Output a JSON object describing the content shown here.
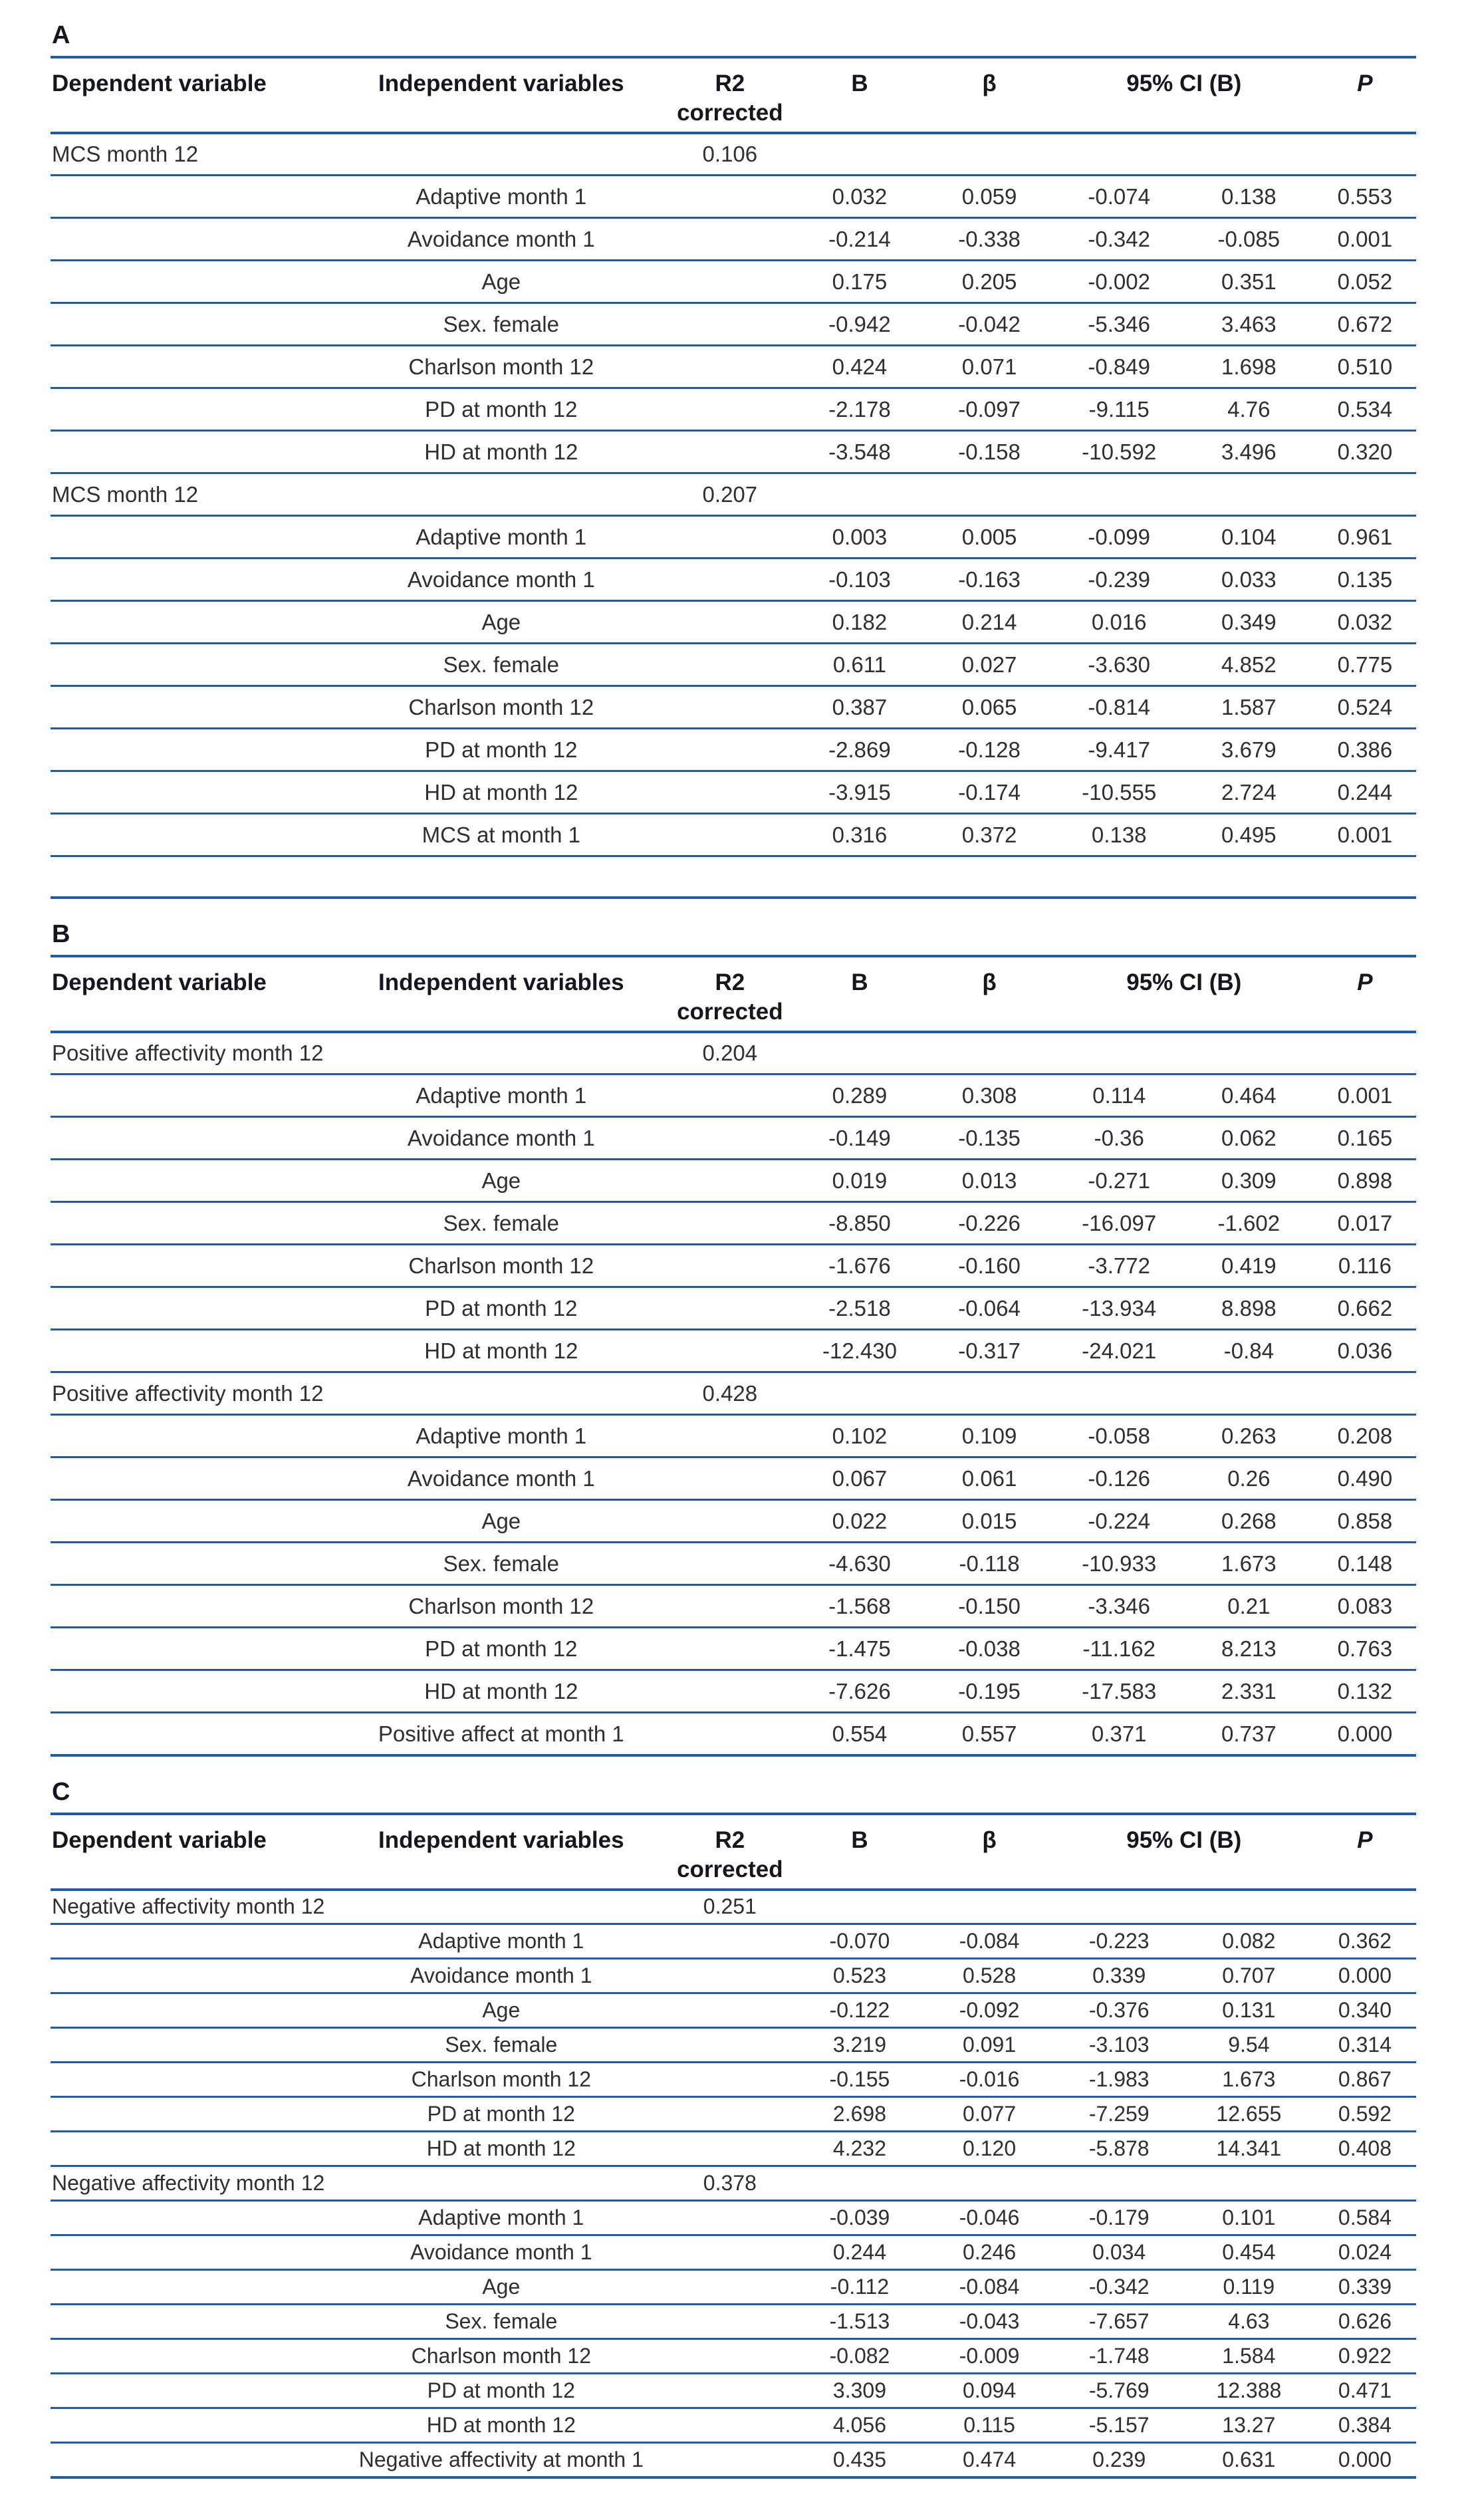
{
  "page": {
    "background": "#ffffff",
    "rule_color": "#1e5caa",
    "text_color": "#2e2e33"
  },
  "columns": {
    "dependent": "Dependent variable",
    "independent": "Independent variables",
    "r2_line1": "R2",
    "r2_line2": "corrected",
    "b": "B",
    "beta": "β",
    "ci": "95% CI (B)",
    "p": "P"
  },
  "sections": [
    {
      "label": "A",
      "compact": false,
      "trailing_blank_row": true,
      "groups": [
        {
          "dependent": "MCS month 12",
          "r2_corrected": "0.106",
          "rows": [
            {
              "independent": "Adaptive month 1",
              "b": "0.032",
              "beta": "0.059",
              "ci_low": "-0.074",
              "ci_high": "0.138",
              "p": "0.553"
            },
            {
              "independent": "Avoidance month 1",
              "b": "-0.214",
              "beta": "-0.338",
              "ci_low": "-0.342",
              "ci_high": "-0.085",
              "p": "0.001"
            },
            {
              "independent": "Age",
              "b": "0.175",
              "beta": "0.205",
              "ci_low": "-0.002",
              "ci_high": "0.351",
              "p": "0.052"
            },
            {
              "independent": "Sex. female",
              "b": "-0.942",
              "beta": "-0.042",
              "ci_low": "-5.346",
              "ci_high": "3.463",
              "p": "0.672"
            },
            {
              "independent": "Charlson month 12",
              "b": "0.424",
              "beta": "0.071",
              "ci_low": "-0.849",
              "ci_high": "1.698",
              "p": "0.510"
            },
            {
              "independent": "PD at month 12",
              "b": "-2.178",
              "beta": "-0.097",
              "ci_low": "-9.115",
              "ci_high": "4.76",
              "p": "0.534"
            },
            {
              "independent": "HD at month 12",
              "b": "-3.548",
              "beta": "-0.158",
              "ci_low": "-10.592",
              "ci_high": "3.496",
              "p": "0.320"
            }
          ]
        },
        {
          "dependent": "MCS month 12",
          "r2_corrected": "0.207",
          "rows": [
            {
              "independent": "Adaptive month 1",
              "b": "0.003",
              "beta": "0.005",
              "ci_low": "-0.099",
              "ci_high": "0.104",
              "p": "0.961"
            },
            {
              "independent": "Avoidance month 1",
              "b": "-0.103",
              "beta": "-0.163",
              "ci_low": "-0.239",
              "ci_high": "0.033",
              "p": "0.135"
            },
            {
              "independent": "Age",
              "b": "0.182",
              "beta": "0.214",
              "ci_low": "0.016",
              "ci_high": "0.349",
              "p": "0.032"
            },
            {
              "independent": "Sex. female",
              "b": "0.611",
              "beta": "0.027",
              "ci_low": "-3.630",
              "ci_high": "4.852",
              "p": "0.775"
            },
            {
              "independent": "Charlson month 12",
              "b": "0.387",
              "beta": "0.065",
              "ci_low": "-0.814",
              "ci_high": "1.587",
              "p": "0.524"
            },
            {
              "independent": "PD at month 12",
              "b": "-2.869",
              "beta": "-0.128",
              "ci_low": "-9.417",
              "ci_high": "3.679",
              "p": "0.386"
            },
            {
              "independent": "HD at month 12",
              "b": "-3.915",
              "beta": "-0.174",
              "ci_low": "-10.555",
              "ci_high": "2.724",
              "p": "0.244"
            },
            {
              "independent": "MCS at month 1",
              "b": "0.316",
              "beta": "0.372",
              "ci_low": "0.138",
              "ci_high": "0.495",
              "p": "0.001"
            }
          ]
        }
      ]
    },
    {
      "label": "B",
      "compact": false,
      "trailing_blank_row": false,
      "groups": [
        {
          "dependent": "Positive affectivity month 12",
          "r2_corrected": "0.204",
          "rows": [
            {
              "independent": "Adaptive month 1",
              "b": "0.289",
              "beta": "0.308",
              "ci_low": "0.114",
              "ci_high": "0.464",
              "p": "0.001"
            },
            {
              "independent": "Avoidance month 1",
              "b": "-0.149",
              "beta": "-0.135",
              "ci_low": "-0.36",
              "ci_high": "0.062",
              "p": "0.165"
            },
            {
              "independent": "Age",
              "b": "0.019",
              "beta": "0.013",
              "ci_low": "-0.271",
              "ci_high": "0.309",
              "p": "0.898"
            },
            {
              "independent": "Sex. female",
              "b": "-8.850",
              "beta": "-0.226",
              "ci_low": "-16.097",
              "ci_high": "-1.602",
              "p": "0.017"
            },
            {
              "independent": "Charlson month 12",
              "b": "-1.676",
              "beta": "-0.160",
              "ci_low": "-3.772",
              "ci_high": "0.419",
              "p": "0.116"
            },
            {
              "independent": "PD at month 12",
              "b": "-2.518",
              "beta": "-0.064",
              "ci_low": "-13.934",
              "ci_high": "8.898",
              "p": "0.662"
            },
            {
              "independent": "HD at month 12",
              "b": "-12.430",
              "beta": "-0.317",
              "ci_low": "-24.021",
              "ci_high": "-0.84",
              "p": "0.036"
            }
          ]
        },
        {
          "dependent": "Positive affectivity month 12",
          "r2_corrected": "0.428",
          "rows": [
            {
              "independent": "Adaptive month 1",
              "b": "0.102",
              "beta": "0.109",
              "ci_low": "-0.058",
              "ci_high": "0.263",
              "p": "0.208"
            },
            {
              "independent": "Avoidance month 1",
              "b": "0.067",
              "beta": "0.061",
              "ci_low": "-0.126",
              "ci_high": "0.26",
              "p": "0.490"
            },
            {
              "independent": "Age",
              "b": "0.022",
              "beta": "0.015",
              "ci_low": "-0.224",
              "ci_high": "0.268",
              "p": "0.858"
            },
            {
              "independent": "Sex. female",
              "b": "-4.630",
              "beta": "-0.118",
              "ci_low": "-10.933",
              "ci_high": "1.673",
              "p": "0.148"
            },
            {
              "independent": "Charlson month 12",
              "b": "-1.568",
              "beta": "-0.150",
              "ci_low": "-3.346",
              "ci_high": "0.21",
              "p": "0.083"
            },
            {
              "independent": "PD at month 12",
              "b": "-1.475",
              "beta": "-0.038",
              "ci_low": "-11.162",
              "ci_high": "8.213",
              "p": "0.763"
            },
            {
              "independent": "HD at month 12",
              "b": "-7.626",
              "beta": "-0.195",
              "ci_low": "-17.583",
              "ci_high": "2.331",
              "p": "0.132"
            },
            {
              "independent": "Positive affect at month 1",
              "b": "0.554",
              "beta": "0.557",
              "ci_low": "0.371",
              "ci_high": "0.737",
              "p": "0.000"
            }
          ]
        }
      ]
    },
    {
      "label": "C",
      "compact": true,
      "trailing_blank_row": false,
      "groups": [
        {
          "dependent": "Negative affectivity month 12",
          "r2_corrected": "0.251",
          "rows": [
            {
              "independent": "Adaptive month 1",
              "b": "-0.070",
              "beta": "-0.084",
              "ci_low": "-0.223",
              "ci_high": "0.082",
              "p": "0.362"
            },
            {
              "independent": "Avoidance month 1",
              "b": "0.523",
              "beta": "0.528",
              "ci_low": "0.339",
              "ci_high": "0.707",
              "p": "0.000"
            },
            {
              "independent": "Age",
              "b": "-0.122",
              "beta": "-0.092",
              "ci_low": "-0.376",
              "ci_high": "0.131",
              "p": "0.340"
            },
            {
              "independent": "Sex. female",
              "b": "3.219",
              "beta": "0.091",
              "ci_low": "-3.103",
              "ci_high": "9.54",
              "p": "0.314"
            },
            {
              "independent": "Charlson month 12",
              "b": "-0.155",
              "beta": "-0.016",
              "ci_low": "-1.983",
              "ci_high": "1.673",
              "p": "0.867"
            },
            {
              "independent": "PD at month 12",
              "b": "2.698",
              "beta": "0.077",
              "ci_low": "-7.259",
              "ci_high": "12.655",
              "p": "0.592"
            },
            {
              "independent": "HD at month 12",
              "b": "4.232",
              "beta": "0.120",
              "ci_low": "-5.878",
              "ci_high": "14.341",
              "p": "0.408"
            }
          ]
        },
        {
          "dependent": "Negative affectivity month 12",
          "r2_corrected": "0.378",
          "rows": [
            {
              "independent": "Adaptive month 1",
              "b": "-0.039",
              "beta": "-0.046",
              "ci_low": "-0.179",
              "ci_high": "0.101",
              "p": "0.584"
            },
            {
              "independent": "Avoidance month 1",
              "b": "0.244",
              "beta": "0.246",
              "ci_low": "0.034",
              "ci_high": "0.454",
              "p": "0.024"
            },
            {
              "independent": "Age",
              "b": "-0.112",
              "beta": "-0.084",
              "ci_low": "-0.342",
              "ci_high": "0.119",
              "p": "0.339"
            },
            {
              "independent": "Sex. female",
              "b": "-1.513",
              "beta": "-0.043",
              "ci_low": "-7.657",
              "ci_high": "4.63",
              "p": "0.626"
            },
            {
              "independent": "Charlson month 12",
              "b": "-0.082",
              "beta": "-0.009",
              "ci_low": "-1.748",
              "ci_high": "1.584",
              "p": "0.922"
            },
            {
              "independent": "PD at month 12",
              "b": "3.309",
              "beta": "0.094",
              "ci_low": "-5.769",
              "ci_high": "12.388",
              "p": "0.471"
            },
            {
              "independent": "HD at month 12",
              "b": "4.056",
              "beta": "0.115",
              "ci_low": "-5.157",
              "ci_high": "13.27",
              "p": "0.384"
            },
            {
              "independent": "Negative affectivity at month 1",
              "b": "0.435",
              "beta": "0.474",
              "ci_low": "0.239",
              "ci_high": "0.631",
              "p": "0.000"
            }
          ]
        }
      ]
    }
  ]
}
